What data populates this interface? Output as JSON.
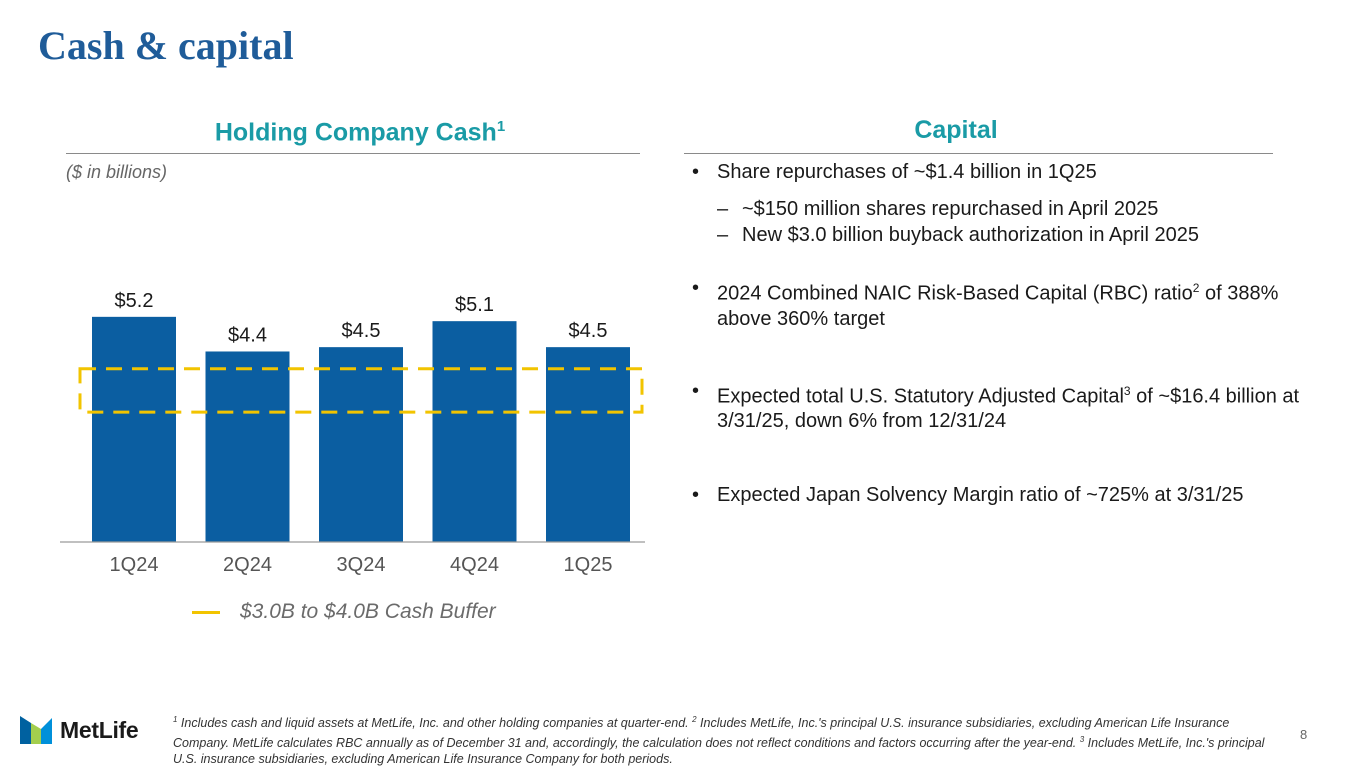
{
  "title": "Cash & capital",
  "left_section": {
    "heading": "Holding Company Cash",
    "heading_sup": "1",
    "units": "($ in billions)"
  },
  "right_section": {
    "heading": "Capital"
  },
  "chart_data": {
    "type": "bar",
    "title": "Holding Company Cash",
    "ylabel": "$ in billions",
    "categories": [
      "1Q24",
      "2Q24",
      "3Q24",
      "4Q24",
      "1Q25"
    ],
    "values": [
      5.2,
      4.4,
      4.5,
      5.1,
      4.5
    ],
    "value_labels": [
      "$5.2",
      "$4.4",
      "$4.5",
      "$5.1",
      "$4.5"
    ],
    "ylim": [
      0,
      6.0
    ],
    "band": {
      "low": 3.0,
      "high": 4.0,
      "color": "#f2c400",
      "style": "dashed"
    },
    "bar_color": "#0b5ea1",
    "legend": "$3.0B to $4.0B Cash Buffer"
  },
  "bullets": {
    "b1": "Share repurchases of ~$1.4 billion in 1Q25",
    "b1_sub1": "~$150 million shares repurchased in April 2025",
    "b1_sub2": "New $3.0 billion buyback authorization in April 2025",
    "b2_pre": "2024 Combined NAIC Risk-Based Capital (RBC) ratio",
    "b2_sup": "2",
    "b2_post": " of 388% above 360% target",
    "b3_pre": "Expected total U.S. Statutory Adjusted Capital",
    "b3_sup": "3",
    "b3_post": " of ~$16.4 billion at 3/31/25, down 6% from 12/31/24",
    "b4": "Expected Japan Solvency Margin ratio of ~725% at 3/31/25"
  },
  "footnote": {
    "sup1": "1",
    "t1": " Includes cash and liquid assets at MetLife, Inc. and other holding companies at quarter-end. ",
    "sup2": "2",
    "t2": " Includes MetLife, Inc.'s principal U.S. insurance subsidiaries, excluding American Life Insurance Company. MetLife calculates RBC annually as of December 31 and, accordingly, the calculation does not reflect conditions and factors occurring after the year-end. ",
    "sup3": "3",
    "t3": " Includes MetLife, Inc.'s principal U.S. insurance subsidiaries, excluding American Life Insurance Company for both periods."
  },
  "logo_text": "MetLife",
  "page_number": "8",
  "colors": {
    "title": "#1f5c99",
    "heading": "#1a9ba6",
    "bar": "#0b5ea1",
    "buffer": "#f2c400"
  }
}
